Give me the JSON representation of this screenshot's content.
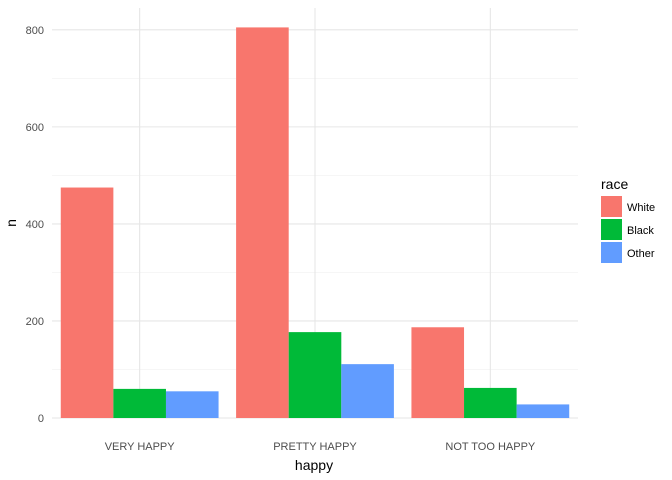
{
  "chart_data": {
    "type": "bar",
    "xlabel": "happy",
    "ylabel": "n",
    "categories": [
      "VERY HAPPY",
      "PRETTY HAPPY",
      "NOT TOO HAPPY"
    ],
    "series": [
      {
        "name": "White",
        "color": "#F8766D",
        "values": [
          475,
          805,
          187
        ]
      },
      {
        "name": "Black",
        "color": "#00BA38",
        "values": [
          60,
          177,
          62
        ]
      },
      {
        "name": "Other",
        "color": "#619CFF",
        "values": [
          55,
          111,
          28
        ]
      }
    ],
    "ylim": [
      0,
      845
    ],
    "yticks": [
      0,
      200,
      400,
      600,
      800
    ],
    "ytick_labels": [
      "0",
      "200",
      "400",
      "600",
      "800"
    ],
    "grid": true,
    "legend": {
      "title": "race",
      "position": "right"
    }
  }
}
